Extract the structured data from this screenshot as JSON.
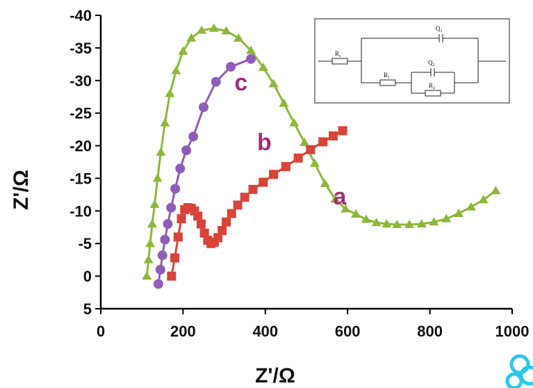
{
  "chart_data": {
    "type": "scatter",
    "xlabel": "Z'/Ω",
    "ylabel": "Z'/Ω",
    "xlim": [
      0,
      1000
    ],
    "ylim": [
      5,
      -40
    ],
    "y_axis_reversed": true,
    "x_ticks": [
      "0",
      "200",
      "400",
      "600",
      "800",
      "1000"
    ],
    "y_ticks": [
      "-40",
      "-35",
      "-30",
      "-25",
      "-20",
      "-15",
      "-10",
      "-5",
      "0",
      "5"
    ],
    "grid": false,
    "series": [
      {
        "name": "a",
        "color": "#8CB83A",
        "marker": "triangle",
        "x": [
          112,
          116,
          120,
          125,
          131,
          138,
          146,
          156,
          168,
          183,
          200,
          220,
          245,
          275,
          305,
          335,
          365,
          395,
          420,
          445,
          470,
          495,
          520,
          545,
          570,
          595,
          620,
          645,
          670,
          695,
          720,
          750,
          780,
          810,
          840,
          870,
          900,
          930,
          960
        ],
        "y": [
          0,
          -2.5,
          -5,
          -8,
          -11,
          -15,
          -19,
          -23.5,
          -28,
          -31.5,
          -34.5,
          -36.5,
          -37.7,
          -38,
          -37.6,
          -36.5,
          -34.6,
          -32,
          -29.5,
          -26.5,
          -23.5,
          -20.5,
          -17.3,
          -14.2,
          -11.8,
          -10.3,
          -9.5,
          -8.7,
          -8.2,
          -8.0,
          -7.9,
          -7.9,
          -8.0,
          -8.3,
          -8.8,
          -9.6,
          -10.6,
          -11.7,
          -13.1
        ]
      },
      {
        "name": "b",
        "color": "#D9443A",
        "marker": "square",
        "x": [
          172,
          180,
          188,
          196,
          204,
          212,
          220,
          228,
          236,
          244,
          252,
          260,
          268,
          276,
          285,
          295,
          305,
          318,
          333,
          350,
          370,
          395,
          420,
          450,
          480,
          510,
          540,
          565,
          588
        ],
        "y": [
          0,
          -2.8,
          -6,
          -8.8,
          -10.2,
          -10.5,
          -10.4,
          -10.0,
          -9.2,
          -8.0,
          -6.6,
          -5.5,
          -5.0,
          -5.2,
          -5.9,
          -7.0,
          -8.3,
          -9.6,
          -10.9,
          -12.1,
          -13.3,
          -14.4,
          -15.6,
          -16.8,
          -18.1,
          -19.4,
          -20.6,
          -21.5,
          -22.3
        ]
      },
      {
        "name": "c",
        "color": "#8E5EB6",
        "marker": "circle",
        "x": [
          140,
          145,
          150,
          156,
          163,
          171,
          181,
          193,
          208,
          225,
          250,
          280,
          316,
          365
        ],
        "y": [
          1.2,
          -1,
          -3.2,
          -5.6,
          -8,
          -10.5,
          -13.4,
          -16.5,
          -19.3,
          -21.4,
          -25.9,
          -29.8,
          -32.1,
          -33.3
        ]
      }
    ],
    "annotations": [
      {
        "text": "a",
        "x": 565,
        "y": -11,
        "color": "#A0307A"
      },
      {
        "text": "b",
        "x": 380,
        "y": -19.3,
        "color": "#A0307A"
      },
      {
        "text": "c",
        "x": 325,
        "y": -28.5,
        "color": "#A0307A"
      }
    ],
    "inset_circuit": {
      "labels": [
        "Rs",
        "Q1",
        "Q2",
        "R1",
        "R2"
      ]
    }
  }
}
